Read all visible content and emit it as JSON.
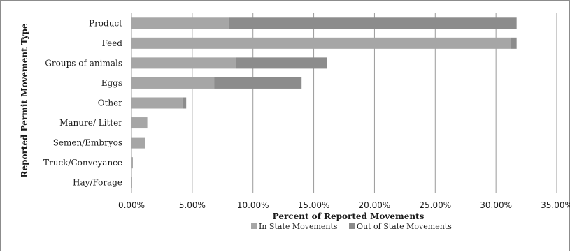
{
  "chart_data": {
    "type": "bar",
    "orientation": "horizontal",
    "stacked": true,
    "categories": [
      "Product",
      "Feed",
      "Groups of animals",
      "Eggs",
      "Other",
      "Manure/ Litter",
      "Semen/Embryos",
      "Truck/Conveyance",
      "Hay/Forage"
    ],
    "series": [
      {
        "name": "In State Movements",
        "values": [
          8.0,
          31.2,
          8.6,
          6.8,
          4.2,
          1.3,
          1.1,
          0.05,
          0.03
        ],
        "color": "#a6a6a6"
      },
      {
        "name": "Out of State Movements",
        "values": [
          23.7,
          0.5,
          7.5,
          7.2,
          0.3,
          0.0,
          0.0,
          0.05,
          0.02
        ],
        "color": "#8c8c8c"
      }
    ],
    "xlabel": "Percent of Reported Movements",
    "ylabel": "Reported Permit Movement Type",
    "xlim": [
      0,
      35
    ],
    "xticks": [
      "0.00%",
      "5.00%",
      "10.00%",
      "15.00%",
      "20.00%",
      "25.00%",
      "30.00%",
      "35.00%"
    ],
    "grid": true,
    "legend": "bottom"
  }
}
